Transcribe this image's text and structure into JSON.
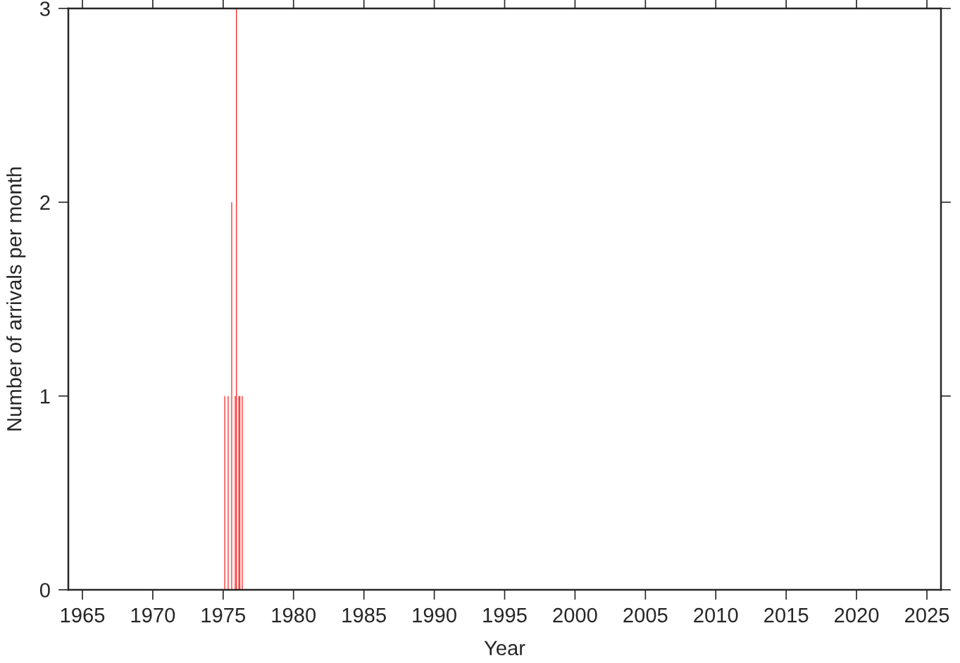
{
  "chart_data": {
    "type": "bar",
    "xlabel": "Year",
    "ylabel": "Number of arrivals per month",
    "x": [
      "1975-02",
      "1975-05",
      "1975-08",
      "1975-11",
      "1975-12",
      "1976-02",
      "1976-03",
      "1976-05"
    ],
    "series": [
      {
        "color": "#ff0000",
        "values": [
          1,
          1,
          2,
          1,
          3,
          1,
          1,
          1
        ]
      }
    ],
    "xlim": [
      "1964",
      "2026"
    ],
    "xticks": [
      "1965",
      "1970",
      "1975",
      "1980",
      "1985",
      "1990",
      "1995",
      "2000",
      "2005",
      "2010",
      "2015",
      "2020",
      "2025"
    ],
    "ylim": [
      0,
      3
    ],
    "yticks": [
      0,
      1,
      2,
      3
    ],
    "grid": false
  }
}
